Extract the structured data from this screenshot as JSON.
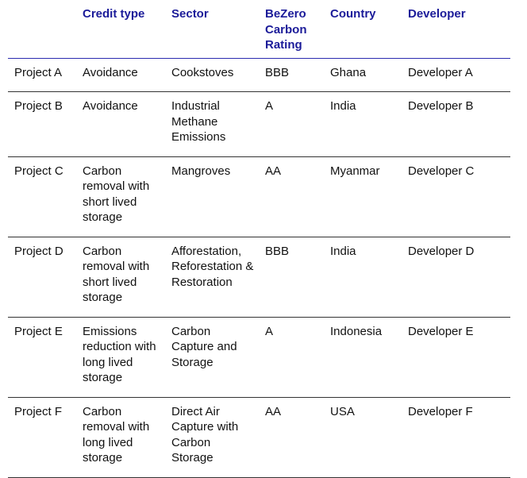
{
  "columns": [
    "",
    "Credit type",
    "Sector",
    "BeZero Carbon Rating",
    "Country",
    "Developer"
  ],
  "header_color": "#1b1b99",
  "rows": [
    {
      "project": "Project A",
      "credit_type": "Avoidance",
      "sector": "Cookstoves",
      "rating": "BBB",
      "country": "Ghana",
      "developer": "Developer A"
    },
    {
      "project": "Project B",
      "credit_type": "Avoidance",
      "sector": "Industrial Methane Emissions",
      "rating": "A",
      "country": "India",
      "developer": "Developer B"
    },
    {
      "project": "Project C",
      "credit_type": "Carbon removal with short lived storage",
      "sector": "Mangroves",
      "rating": "AA",
      "country": "Myanmar",
      "developer": "Developer C"
    },
    {
      "project": "Project D",
      "credit_type": "Carbon removal with short lived storage",
      "sector": "Afforestation, Reforestation & Restoration",
      "rating": "BBB",
      "country": "India",
      "developer": "Developer D"
    },
    {
      "project": "Project E",
      "credit_type": "Emissions reduction with long lived storage",
      "sector": "Carbon Capture and Storage",
      "rating": "A",
      "country": "Indonesia",
      "developer": "Developer E"
    },
    {
      "project": "Project F",
      "credit_type": "Carbon removal with long lived storage",
      "sector": "Direct Air Capture with Carbon Storage",
      "rating": "AA",
      "country": "USA",
      "developer": "Developer F"
    }
  ]
}
